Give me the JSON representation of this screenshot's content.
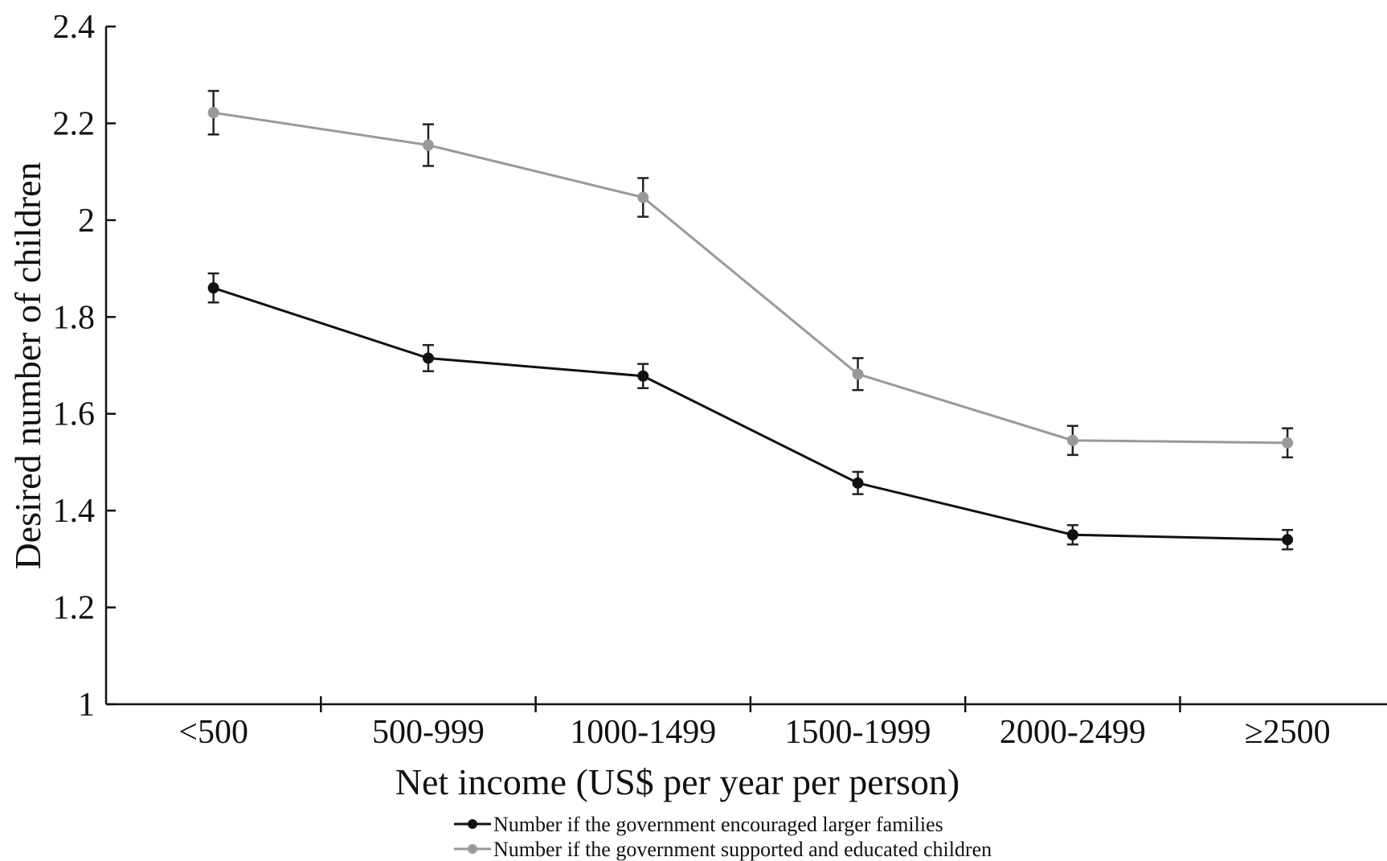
{
  "chart_data": {
    "type": "line",
    "title": "",
    "xlabel": "Net income (US$ per year per person)",
    "ylabel": "Desired number of children",
    "categories": [
      "<500",
      "500-999",
      "1000-1499",
      "1500-1999",
      "2000-2499",
      "≥2500"
    ],
    "ylim": [
      1,
      2.4
    ],
    "yticks": [
      "1",
      "1.2",
      "1.4",
      "1.6",
      "1.8",
      "2",
      "2.2",
      "2.4"
    ],
    "grid": false,
    "legend_position": "bottom",
    "series": [
      {
        "name": "Number if the government encouraged larger families",
        "color": "#111111",
        "values": [
          1.86,
          1.715,
          1.678,
          1.457,
          1.35,
          1.34
        ],
        "error": [
          0.03,
          0.027,
          0.025,
          0.023,
          0.02,
          0.02
        ]
      },
      {
        "name": "Number if the government supported and educated children",
        "color": "#999999",
        "values": [
          2.222,
          2.155,
          2.047,
          1.682,
          1.545,
          1.54
        ],
        "error": [
          0.045,
          0.043,
          0.04,
          0.033,
          0.03,
          0.03
        ]
      }
    ]
  }
}
